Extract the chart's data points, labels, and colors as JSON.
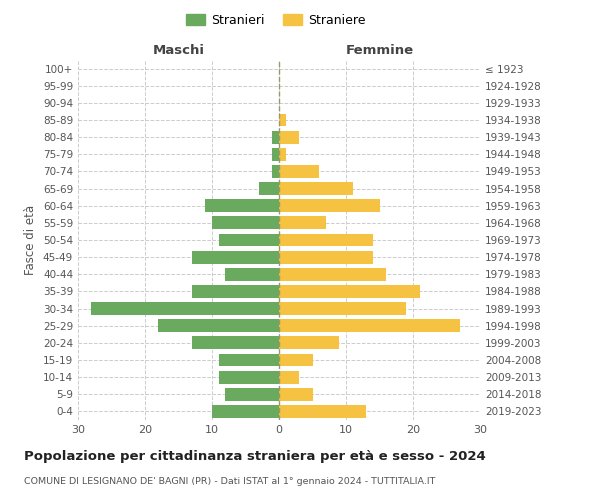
{
  "age_groups": [
    "0-4",
    "5-9",
    "10-14",
    "15-19",
    "20-24",
    "25-29",
    "30-34",
    "35-39",
    "40-44",
    "45-49",
    "50-54",
    "55-59",
    "60-64",
    "65-69",
    "70-74",
    "75-79",
    "80-84",
    "85-89",
    "90-94",
    "95-99",
    "100+"
  ],
  "birth_years": [
    "2019-2023",
    "2014-2018",
    "2009-2013",
    "2004-2008",
    "1999-2003",
    "1994-1998",
    "1989-1993",
    "1984-1988",
    "1979-1983",
    "1974-1978",
    "1969-1973",
    "1964-1968",
    "1959-1963",
    "1954-1958",
    "1949-1953",
    "1944-1948",
    "1939-1943",
    "1934-1938",
    "1929-1933",
    "1924-1928",
    "≤ 1923"
  ],
  "maschi": [
    10,
    8,
    9,
    9,
    13,
    18,
    28,
    13,
    8,
    13,
    9,
    10,
    11,
    3,
    1,
    1,
    1,
    0,
    0,
    0,
    0
  ],
  "femmine": [
    13,
    5,
    3,
    5,
    9,
    27,
    19,
    21,
    16,
    14,
    14,
    7,
    15,
    11,
    6,
    1,
    3,
    1,
    0,
    0,
    0
  ],
  "maschi_color": "#6aaa5e",
  "femmine_color": "#f5c242",
  "background_color": "#ffffff",
  "grid_color": "#cccccc",
  "title": "Popolazione per cittadinanza straniera per età e sesso - 2024",
  "subtitle": "COMUNE DI LESIGNANO DE' BAGNI (PR) - Dati ISTAT al 1° gennaio 2024 - TUTTITALIA.IT",
  "ylabel_left": "Fasce di età",
  "xlabel_maschi": "Maschi",
  "xlabel_femmine": "Femmine",
  "legend_maschi": "Stranieri",
  "legend_femmine": "Straniere",
  "xlim": 30
}
